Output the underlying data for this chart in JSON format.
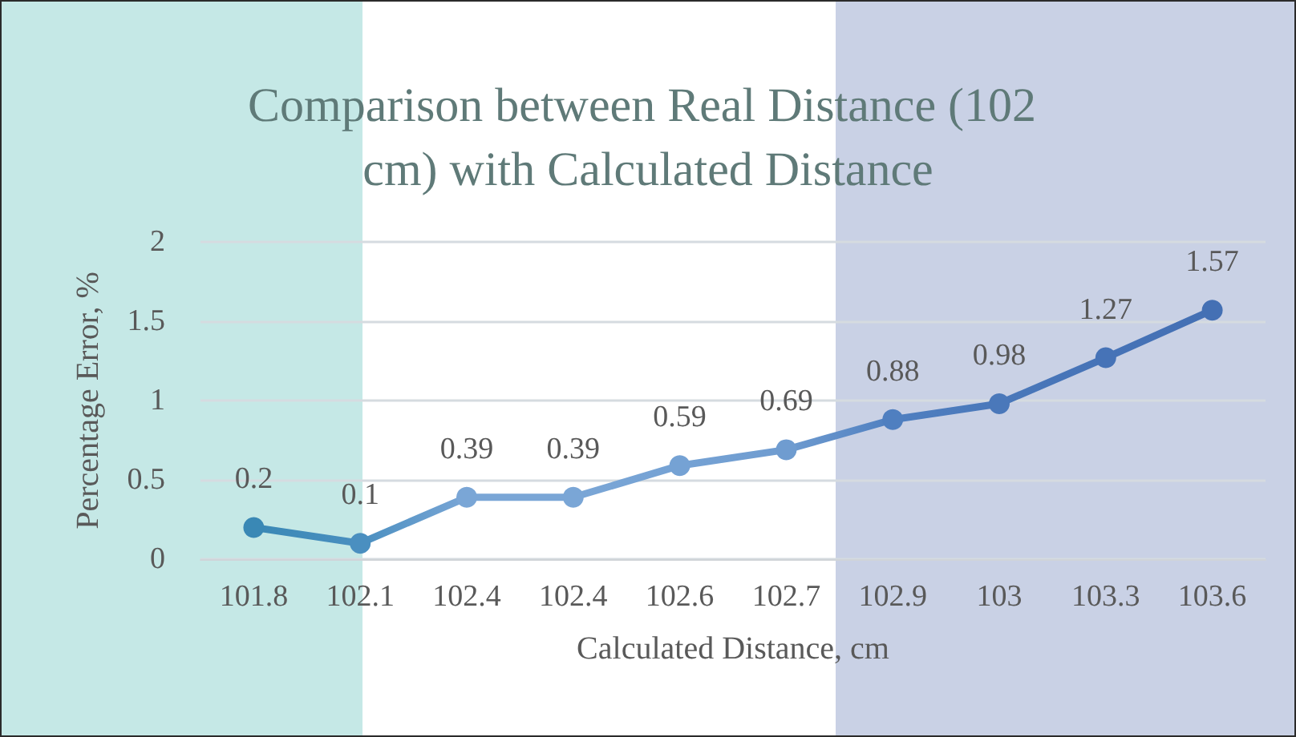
{
  "chart_data": {
    "type": "line",
    "title": "Comparison between Real Distance (102 cm) with Calculated Distance",
    "xlabel": "Calculated Distance, cm",
    "ylabel": "Percentage Error, %",
    "categories": [
      "101.8",
      "102.1",
      "102.4",
      "102.4",
      "102.6",
      "102.7",
      "102.9",
      "103",
      "103.3",
      "103.6"
    ],
    "series": [
      {
        "colors": [
          "#3a88b5",
          "#4a8fc0",
          "#7aa6d6",
          "#7aa6d6",
          "#75a2d4",
          "#6f9cd0",
          "#4f7fc0",
          "#4a78ba",
          "#4673b7",
          "#4470b4"
        ],
        "values": [
          0.2,
          0.1,
          0.39,
          0.39,
          0.59,
          0.69,
          0.88,
          0.98,
          1.27,
          1.57
        ]
      }
    ],
    "ylim": [
      0,
      2
    ],
    "yticks": [
      0,
      0.5,
      1,
      1.5,
      2
    ],
    "grid": "y",
    "data_labels": true,
    "marker": "circle",
    "line_style": "solid"
  }
}
